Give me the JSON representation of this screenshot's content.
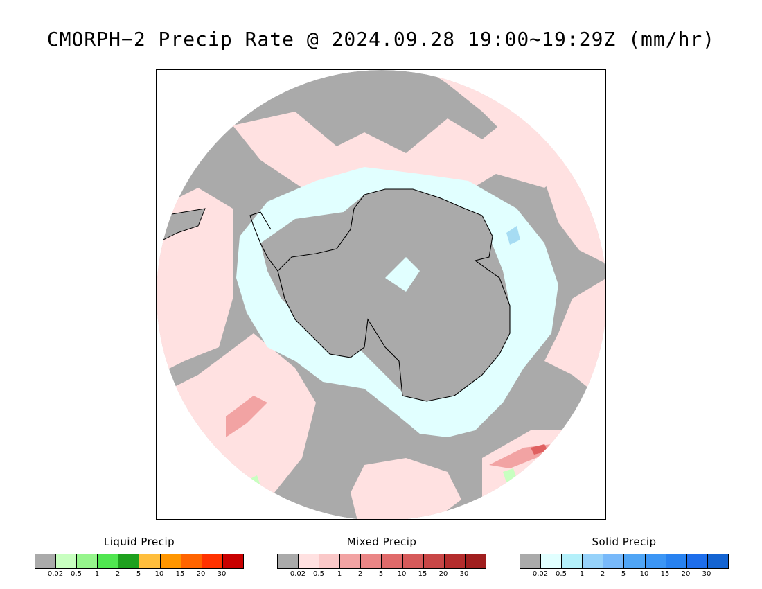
{
  "title": "CMORPH−2 Precip Rate @ 2024.09.28 19:00~19:29Z (mm/hr)",
  "map": {
    "projection": "south-polar-stereographic",
    "colors": {
      "no_precip": "#aaaaaa",
      "mixed_light": "#ffe1e1",
      "mixed_mid": "#f2a3a3",
      "mixed_heavy": "#e06060",
      "solid_light": "#e1ffff",
      "solid_mid": "#a6dcf3",
      "liquid_light": "#c8ffc0",
      "coastline": "#000000"
    }
  },
  "legends": [
    {
      "title": "Liquid Precip",
      "colors": [
        "#aaaaaa",
        "#c8ffc0",
        "#96f58c",
        "#50e650",
        "#1ea01e",
        "#ffbe3c",
        "#ff9600",
        "#ff6400",
        "#ff3200",
        "#c80000"
      ],
      "ticks": [
        "0.02",
        "0.5",
        "1",
        "2",
        "5",
        "10",
        "15",
        "20",
        "30"
      ]
    },
    {
      "title": "Mixed Precip",
      "colors": [
        "#aaaaaa",
        "#ffe1e1",
        "#fac8c8",
        "#f2a3a3",
        "#ea8686",
        "#e06a6a",
        "#d65a5a",
        "#c84646",
        "#b42c2c",
        "#a01e1e"
      ],
      "ticks": [
        "0.02",
        "0.5",
        "1",
        "2",
        "5",
        "10",
        "15",
        "20",
        "30"
      ]
    },
    {
      "title": "Solid Precip",
      "colors": [
        "#aaaaaa",
        "#e1ffff",
        "#b4f0fa",
        "#96d2fa",
        "#78b9fa",
        "#50a5f5",
        "#3c96f5",
        "#2882f0",
        "#1e6eeb",
        "#1464d2"
      ],
      "ticks": [
        "0.02",
        "0.5",
        "1",
        "2",
        "5",
        "10",
        "15",
        "20",
        "30"
      ]
    }
  ]
}
